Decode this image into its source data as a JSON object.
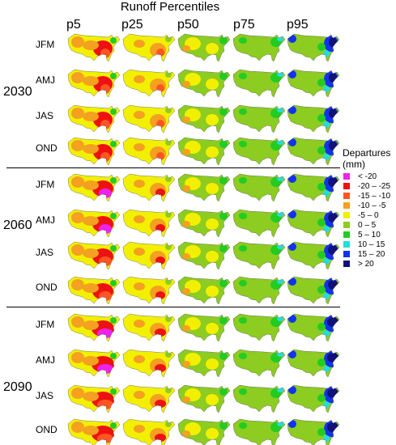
{
  "title": "Runoff Percentiles",
  "percentiles": [
    "p5",
    "p25",
    "p50",
    "p75",
    "p95"
  ],
  "seasons": [
    "JFM",
    "AMJ",
    "JAS",
    "OND"
  ],
  "eras": [
    "2030",
    "2060",
    "2090"
  ],
  "legend": {
    "title_line1": "Departures",
    "title_line2": "(mm)",
    "items": [
      {
        "label": "< -20",
        "color": "#ee22ee"
      },
      {
        "label": "-20 – -25",
        "color": "#ee1111"
      },
      {
        "label": "-15 – -10",
        "color": "#ff5522"
      },
      {
        "label": "-10 – -5",
        "color": "#f4a020"
      },
      {
        "label": "-5 – 0",
        "color": "#f2f000"
      },
      {
        "label": "0 – 5",
        "color": "#8dcc20"
      },
      {
        "label": "5 – 10",
        "color": "#22cc22"
      },
      {
        "label": "10 – 15",
        "color": "#22dddd"
      },
      {
        "label": "15 – 20",
        "color": "#1133ee"
      },
      {
        "label": "> 20",
        "color": "#111177"
      }
    ]
  }
}
